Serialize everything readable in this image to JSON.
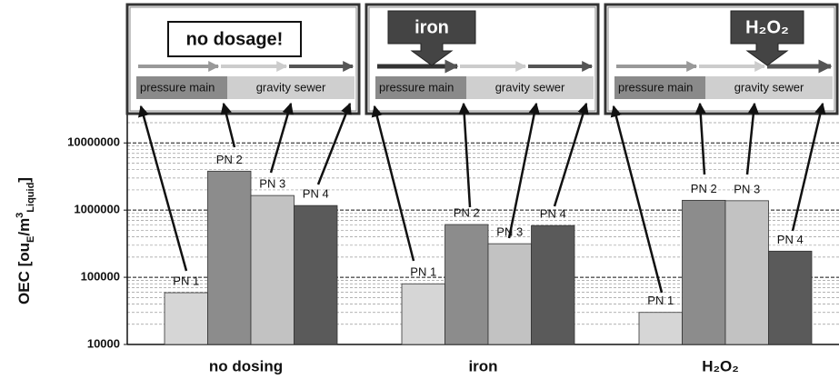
{
  "chart_data": {
    "type": "bar",
    "y_label_parts": [
      "OEC [ou",
      "E",
      "/m",
      "3",
      "Liquid",
      "]"
    ],
    "categories": [
      "no dosing",
      "iron",
      "H₂O₂"
    ],
    "series": [
      {
        "name": "PN 1",
        "color": "#d6d6d6",
        "values": [
          59000,
          80000,
          30000
        ]
      },
      {
        "name": "PN 2",
        "color": "#8c8c8c",
        "values": [
          3800000,
          610000,
          1400000
        ]
      },
      {
        "name": "PN 3",
        "color": "#c2c2c2",
        "values": [
          1650000,
          316000,
          1380000
        ]
      },
      {
        "name": "PN 4",
        "color": "#5a5a5a",
        "values": [
          1170000,
          590000,
          245000
        ]
      }
    ],
    "ylim": [
      10000,
      30000000
    ],
    "yticks": [
      10000,
      100000,
      1000000,
      10000000
    ],
    "log_scale": true,
    "grid": true,
    "panels": [
      {
        "tag": "no dosage!",
        "left": "pressure main",
        "right": "gravity sewer"
      },
      {
        "tag": "iron",
        "left": "pressure main",
        "right": "gravity sewer"
      },
      {
        "tag": "H₂O₂",
        "left": "pressure main",
        "right": "gravity sewer"
      }
    ]
  }
}
